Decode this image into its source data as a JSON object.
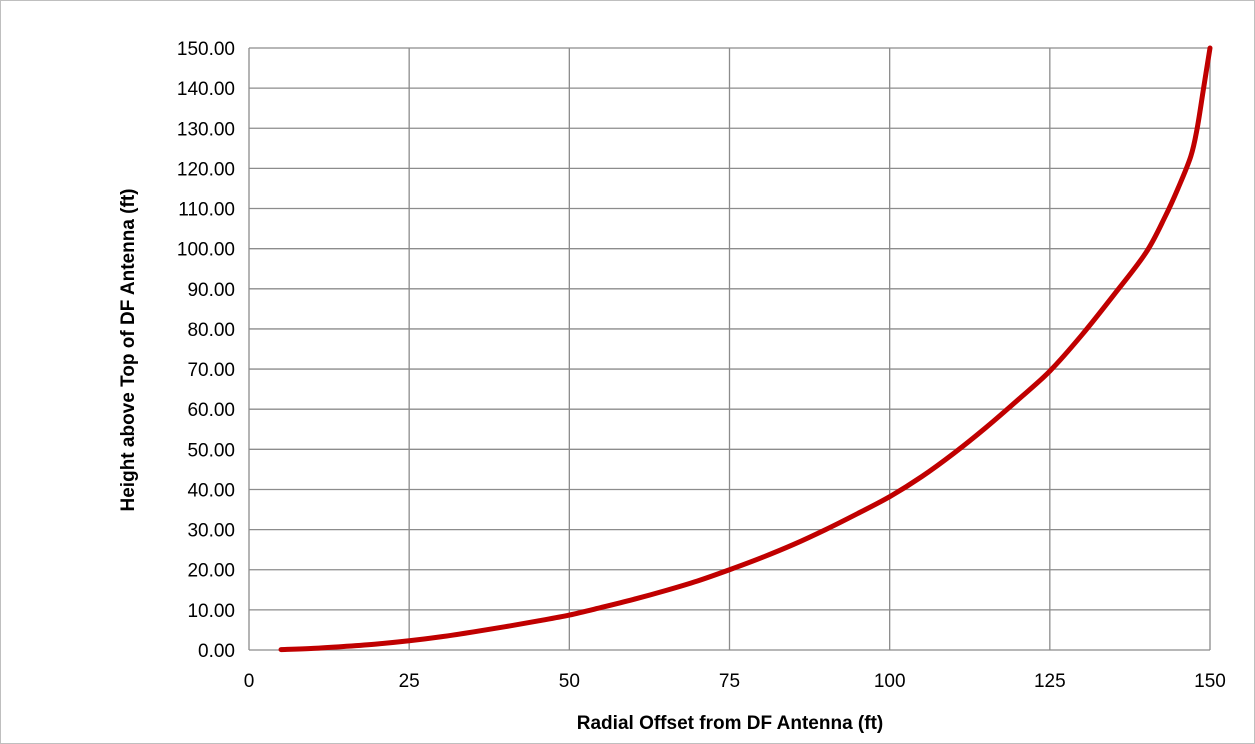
{
  "chart_data": {
    "type": "line",
    "title": "",
    "xlabel": "Radial Offset from DF Antenna (ft)",
    "ylabel": "Height above Top of DF Antenna (ft)",
    "xlim": [
      0,
      150
    ],
    "ylim": [
      0,
      150
    ],
    "x_ticks": [
      "0",
      "25",
      "50",
      "75",
      "100",
      "125",
      "150"
    ],
    "y_ticks": [
      "0.00",
      "10.00",
      "20.00",
      "30.00",
      "40.00",
      "50.00",
      "60.00",
      "70.00",
      "80.00",
      "90.00",
      "100.00",
      "110.00",
      "120.00",
      "130.00",
      "140.00",
      "150.00"
    ],
    "grid": true,
    "legend": "none",
    "series": [
      {
        "color": "#c00000",
        "x": [
          5,
          10,
          15,
          20,
          25,
          30,
          35,
          40,
          45,
          50,
          55,
          60,
          65,
          70,
          75,
          80,
          85,
          90,
          95,
          100,
          105,
          110,
          115,
          120,
          125,
          130,
          135,
          140,
          143,
          145,
          147,
          148,
          149,
          150
        ],
        "y": [
          0.1,
          0.4,
          0.9,
          1.5,
          2.3,
          3.3,
          4.5,
          5.8,
          7.2,
          8.7,
          10.6,
          12.6,
          14.8,
          17.2,
          20.0,
          23.0,
          26.3,
          30.0,
          34.0,
          38.2,
          43.2,
          49.0,
          55.4,
          62.3,
          69.5,
          78.5,
          88.5,
          99.0,
          108.0,
          115.0,
          123.0,
          130.0,
          140.0,
          150.0
        ]
      }
    ]
  }
}
